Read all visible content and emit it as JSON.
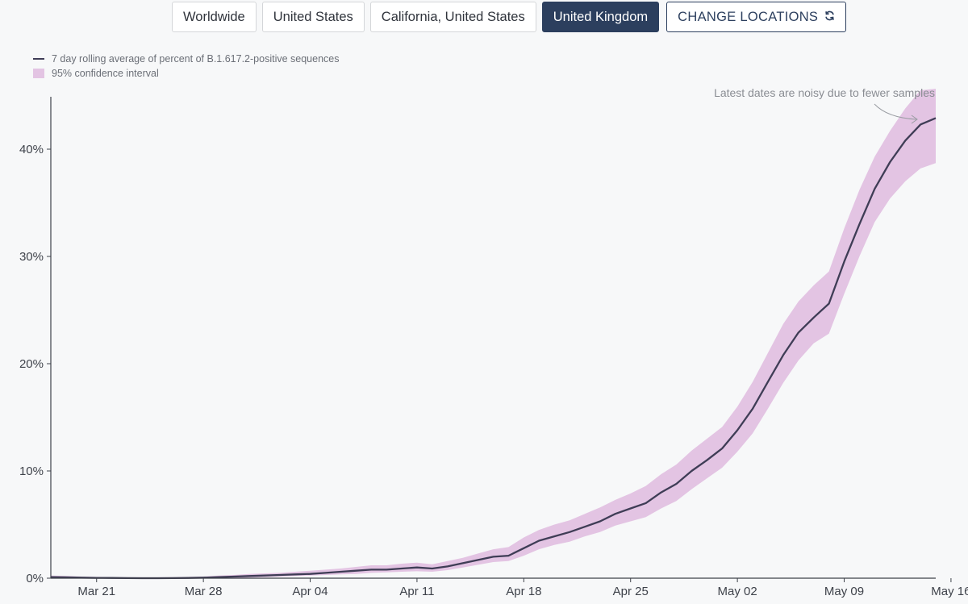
{
  "locations": {
    "buttons": [
      {
        "label": "Worldwide",
        "active": false
      },
      {
        "label": "United States",
        "active": false
      },
      {
        "label": "California, United States",
        "active": false
      },
      {
        "label": "United Kingdom",
        "active": true
      }
    ],
    "change_label": "CHANGE LOCATIONS",
    "change_icon": "refresh-icon"
  },
  "colors": {
    "line": "#3f3d56",
    "band": "#e3c4e3",
    "active_button": "#2c3f5e"
  },
  "chart_data": {
    "type": "line",
    "title": "",
    "xlabel": "",
    "ylabel": "",
    "legend": {
      "position": "top-left",
      "line_label": "7 day rolling average of percent of B.1.617.2-positive sequences",
      "band_label": "95% confidence interval"
    },
    "annotation": "Latest dates are noisy due to fewer samples",
    "x_ticks": [
      "Mar 21",
      "Mar 28",
      "Apr 04",
      "Apr 11",
      "Apr 18",
      "Apr 25",
      "May 02",
      "May 09",
      "May 16"
    ],
    "y_ticks": [
      "0%",
      "10%",
      "20%",
      "30%",
      "40%"
    ],
    "y_tick_values": [
      0,
      10,
      20,
      30,
      40
    ],
    "ylim": [
      0,
      45
    ],
    "x_range_days": [
      0,
      58
    ],
    "series": [
      {
        "name": "7 day rolling average of percent of B.1.617.2-positive sequences",
        "x": [
          0,
          1,
          2,
          3,
          4,
          5,
          6,
          7,
          8,
          9,
          10,
          11,
          12,
          13,
          14,
          15,
          16,
          17,
          18,
          19,
          20,
          21,
          22,
          23,
          24,
          25,
          26,
          27,
          28,
          29,
          30,
          31,
          32,
          33,
          34,
          35,
          36,
          37,
          38,
          39,
          40,
          41,
          42,
          43,
          44,
          45,
          46,
          47,
          48,
          49,
          50,
          51,
          52,
          53,
          54,
          55,
          56,
          57,
          58
        ],
        "values": [
          0.1,
          0.08,
          0.05,
          0.03,
          0.02,
          0.01,
          0,
          0,
          0.01,
          0.02,
          0.05,
          0.1,
          0.15,
          0.2,
          0.25,
          0.3,
          0.35,
          0.4,
          0.5,
          0.6,
          0.7,
          0.8,
          0.8,
          0.9,
          1.0,
          0.9,
          1.1,
          1.4,
          1.7,
          2.0,
          2.1,
          2.8,
          3.5,
          3.9,
          4.3,
          4.8,
          5.3,
          6.0,
          6.5,
          7.0,
          8.0,
          8.8,
          10.0,
          11.0,
          12.1,
          13.8,
          15.8,
          18.3,
          20.8,
          22.9,
          24.3,
          25.6,
          29.5,
          33.0,
          36.3,
          38.8,
          40.8,
          42.3,
          42.9
        ]
      }
    ],
    "confidence_interval": {
      "name": "95% confidence interval",
      "lower": [
        0.0,
        0.0,
        0.0,
        0.0,
        0.0,
        0.0,
        0,
        0,
        0.0,
        0.0,
        0.0,
        0.0,
        0.0,
        0.05,
        0.1,
        0.15,
        0.2,
        0.25,
        0.3,
        0.35,
        0.4,
        0.5,
        0.55,
        0.6,
        0.65,
        0.6,
        0.75,
        1.0,
        1.25,
        1.5,
        1.6,
        2.1,
        2.7,
        3.1,
        3.4,
        3.9,
        4.3,
        4.9,
        5.3,
        5.7,
        6.5,
        7.2,
        8.3,
        9.3,
        10.3,
        11.8,
        13.5,
        15.8,
        18.2,
        20.3,
        21.9,
        22.8,
        26.5,
        30.0,
        33.2,
        35.4,
        37.0,
        38.2,
        38.7
      ],
      "upper": [
        0.25,
        0.2,
        0.15,
        0.12,
        0.1,
        0.08,
        0.08,
        0.08,
        0.1,
        0.12,
        0.15,
        0.25,
        0.3,
        0.4,
        0.45,
        0.5,
        0.6,
        0.7,
        0.8,
        0.9,
        1.05,
        1.2,
        1.2,
        1.35,
        1.45,
        1.3,
        1.6,
        1.9,
        2.3,
        2.7,
        2.9,
        3.8,
        4.5,
        5.0,
        5.4,
        6.0,
        6.6,
        7.3,
        7.9,
        8.6,
        9.7,
        10.6,
        11.9,
        13.0,
        14.1,
        16.0,
        18.3,
        21.0,
        23.7,
        25.8,
        27.3,
        28.6,
        32.6,
        36.2,
        39.3,
        41.7,
        43.8,
        45.5,
        46.5
      ]
    }
  }
}
